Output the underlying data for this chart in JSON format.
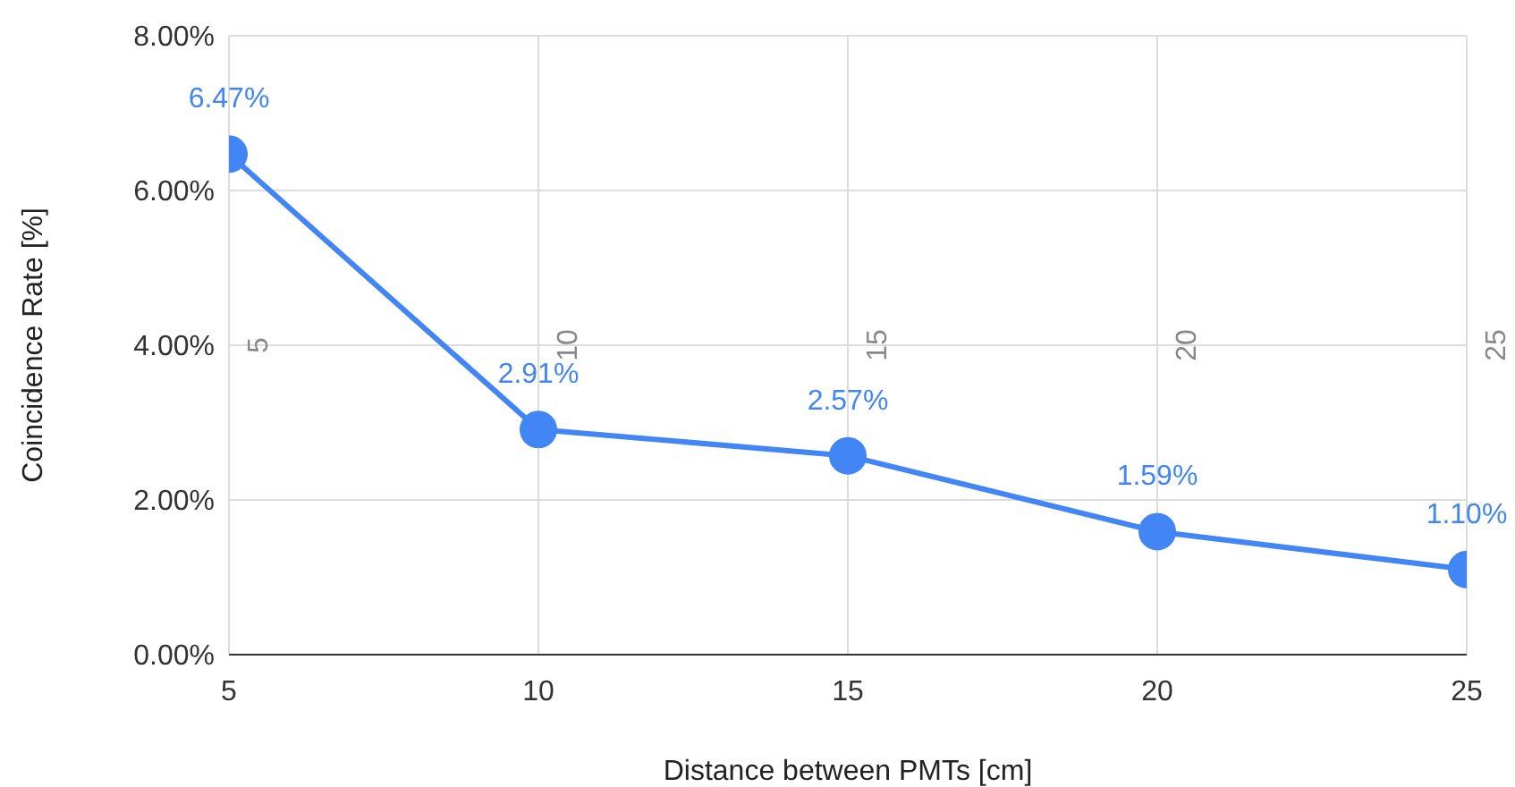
{
  "chart_data": {
    "type": "line",
    "xlabel": "Distance between PMTs [cm]",
    "ylabel": "Coincidence Rate [%]",
    "x": [
      5,
      10,
      15,
      20,
      25
    ],
    "series": [
      {
        "color": "#4285f4",
        "values": [
          6.47,
          2.91,
          2.57,
          1.59,
          1.1
        ],
        "value_labels": [
          "6.47%",
          "2.91%",
          "2.57%",
          "1.59%",
          "1.10%"
        ]
      }
    ],
    "xlim": [
      5,
      25
    ],
    "xticks": [
      5,
      10,
      15,
      20,
      25
    ],
    "ylim": [
      0,
      8
    ],
    "yticks": [
      {
        "value": 0,
        "label": "0.00%"
      },
      {
        "value": 2,
        "label": "2.00%"
      },
      {
        "value": 4,
        "label": "4.00%"
      },
      {
        "value": 6,
        "label": "6.00%"
      },
      {
        "value": 8,
        "label": "8.00%"
      }
    ],
    "grid": true,
    "marker": "circle",
    "line_style": "solid",
    "legend": false,
    "annotations": [
      "5",
      "10",
      "15",
      "20",
      "25"
    ]
  }
}
